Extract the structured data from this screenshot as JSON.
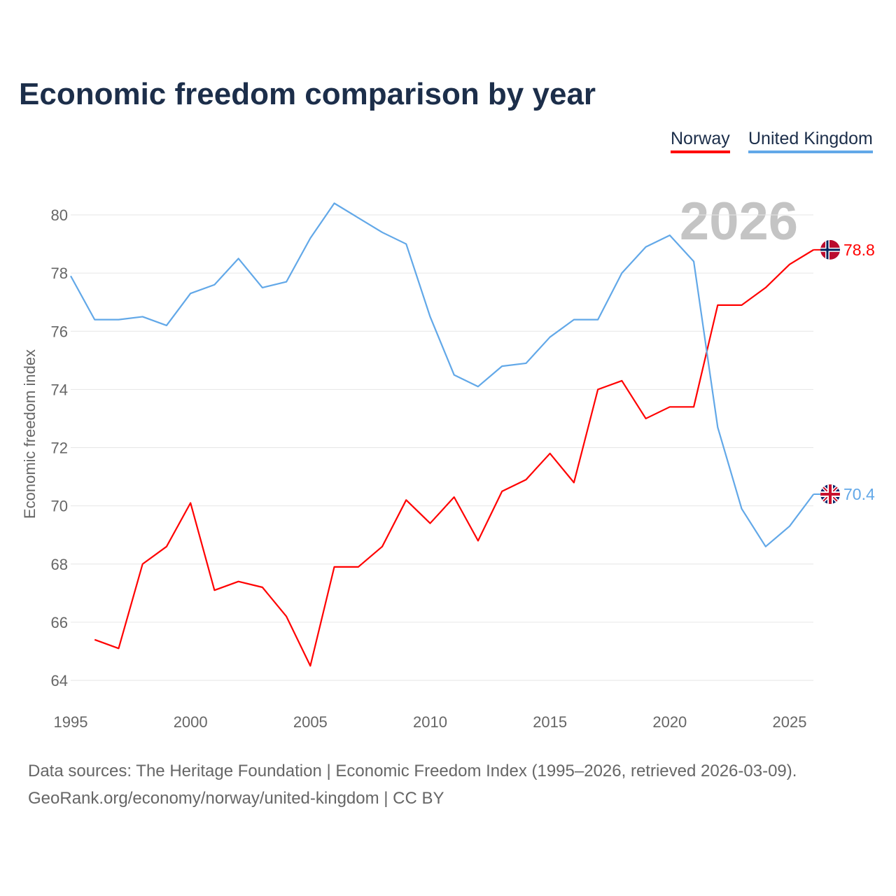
{
  "chart_data": {
    "type": "line",
    "title": "Economic freedom comparison by year",
    "xlabel": "",
    "ylabel": "Economic freedom index",
    "xlim": [
      1995,
      2026
    ],
    "ylim": [
      64,
      80
    ],
    "x_ticks": [
      "1995",
      "2000",
      "2005",
      "2010",
      "2015",
      "2020",
      "2025"
    ],
    "y_ticks": [
      "64",
      "66",
      "68",
      "70",
      "72",
      "74",
      "76",
      "78",
      "80"
    ],
    "grid": true,
    "legend_position": "top-right",
    "year_watermark": "2026",
    "series": [
      {
        "name": "Norway",
        "color": "#ff0000",
        "end_label": "78.8",
        "x": [
          1996,
          1997,
          1998,
          1999,
          2000,
          2001,
          2002,
          2003,
          2004,
          2005,
          2006,
          2007,
          2008,
          2009,
          2010,
          2011,
          2012,
          2013,
          2014,
          2015,
          2016,
          2017,
          2018,
          2019,
          2020,
          2021,
          2022,
          2023,
          2024,
          2025,
          2026
        ],
        "values": [
          65.4,
          65.1,
          68.0,
          68.6,
          70.1,
          67.1,
          67.4,
          67.2,
          66.2,
          64.5,
          67.9,
          67.9,
          68.6,
          70.2,
          69.4,
          70.3,
          68.8,
          70.5,
          70.9,
          71.8,
          70.8,
          74.0,
          74.3,
          73.0,
          73.4,
          73.4,
          76.9,
          76.9,
          77.5,
          78.3,
          78.8
        ]
      },
      {
        "name": "United Kingdom",
        "color": "#62a8e8",
        "end_label": "70.4",
        "x": [
          1995,
          1996,
          1997,
          1998,
          1999,
          2000,
          2001,
          2002,
          2003,
          2004,
          2005,
          2006,
          2007,
          2008,
          2009,
          2010,
          2011,
          2012,
          2013,
          2014,
          2015,
          2016,
          2017,
          2018,
          2019,
          2020,
          2021,
          2022,
          2023,
          2024,
          2025,
          2026
        ],
        "values": [
          77.9,
          76.4,
          76.4,
          76.5,
          76.2,
          77.3,
          77.6,
          78.5,
          77.5,
          77.7,
          79.2,
          80.4,
          79.9,
          79.4,
          79.0,
          76.5,
          74.5,
          74.1,
          74.8,
          74.9,
          75.8,
          76.4,
          76.4,
          78.0,
          78.9,
          79.3,
          78.4,
          72.7,
          69.9,
          68.6,
          69.3,
          70.4
        ]
      }
    ]
  },
  "footer": {
    "line1": "Data sources: The Heritage Foundation | Economic Freedom Index (1995–2026, retrieved 2026-03-09).",
    "line2": "GeoRank.org/economy/norway/united-kingdom | CC BY"
  }
}
